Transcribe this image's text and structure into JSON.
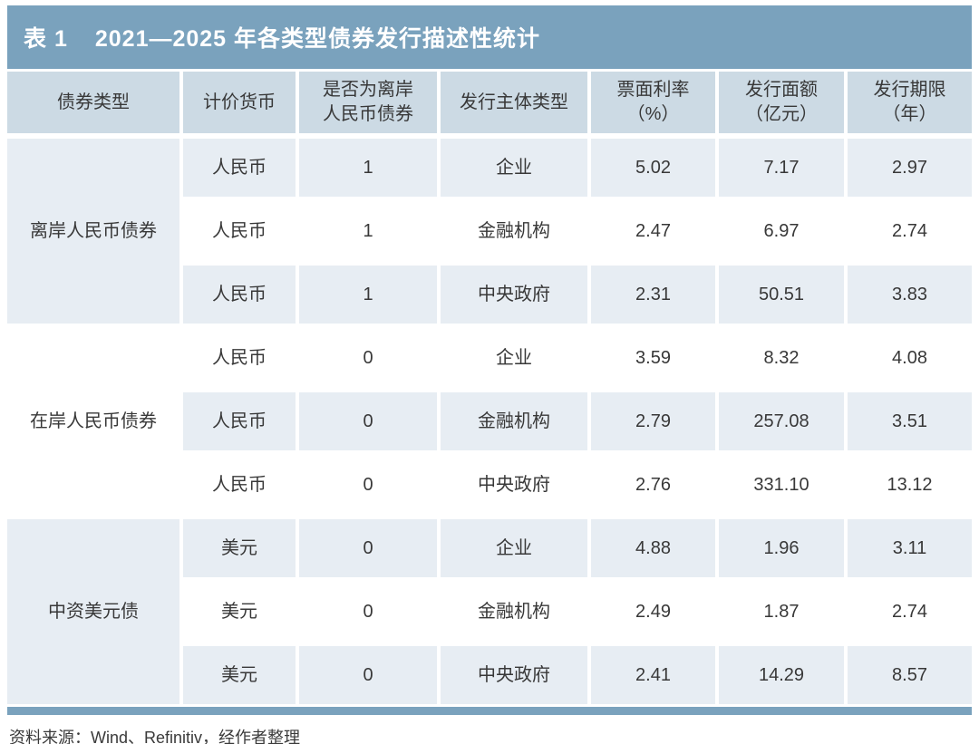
{
  "title": {
    "label": "表 1",
    "text": "2021—2025 年各类型债券发行描述性统计"
  },
  "colors": {
    "accent_bar": "#7aa2bd",
    "header_bg": "#ccdae4",
    "row_alt_bg": "#e7edf3",
    "text": "#383838"
  },
  "table": {
    "headers": [
      {
        "lines": [
          "债券类型"
        ]
      },
      {
        "lines": [
          "计价货币"
        ]
      },
      {
        "lines": [
          "是否为离岸",
          "人民币债券"
        ]
      },
      {
        "lines": [
          "发行主体类型"
        ]
      },
      {
        "lines": [
          "票面利率",
          "（%）"
        ]
      },
      {
        "lines": [
          "发行面额",
          "（亿元）"
        ]
      },
      {
        "lines": [
          "发行期限",
          "（年）"
        ]
      }
    ],
    "groups": [
      {
        "label": "离岸人民币债券",
        "rows": [
          {
            "currency": "人民币",
            "offshore": "1",
            "issuer": "企业",
            "coupon": "5.02",
            "amount": "7.17",
            "term": "2.97"
          },
          {
            "currency": "人民币",
            "offshore": "1",
            "issuer": "金融机构",
            "coupon": "2.47",
            "amount": "6.97",
            "term": "2.74"
          },
          {
            "currency": "人民币",
            "offshore": "1",
            "issuer": "中央政府",
            "coupon": "2.31",
            "amount": "50.51",
            "term": "3.83"
          }
        ]
      },
      {
        "label": "在岸人民币债券",
        "rows": [
          {
            "currency": "人民币",
            "offshore": "0",
            "issuer": "企业",
            "coupon": "3.59",
            "amount": "8.32",
            "term": "4.08"
          },
          {
            "currency": "人民币",
            "offshore": "0",
            "issuer": "金融机构",
            "coupon": "2.79",
            "amount": "257.08",
            "term": "3.51"
          },
          {
            "currency": "人民币",
            "offshore": "0",
            "issuer": "中央政府",
            "coupon": "2.76",
            "amount": "331.10",
            "term": "13.12"
          }
        ]
      },
      {
        "label": "中资美元债",
        "rows": [
          {
            "currency": "美元",
            "offshore": "0",
            "issuer": "企业",
            "coupon": "4.88",
            "amount": "1.96",
            "term": "3.11"
          },
          {
            "currency": "美元",
            "offshore": "0",
            "issuer": "金融机构",
            "coupon": "2.49",
            "amount": "1.87",
            "term": "2.74"
          },
          {
            "currency": "美元",
            "offshore": "0",
            "issuer": "中央政府",
            "coupon": "2.41",
            "amount": "14.29",
            "term": "8.57"
          }
        ]
      }
    ]
  },
  "source_note": "资料来源：Wind、Refinitiv，经作者整理"
}
